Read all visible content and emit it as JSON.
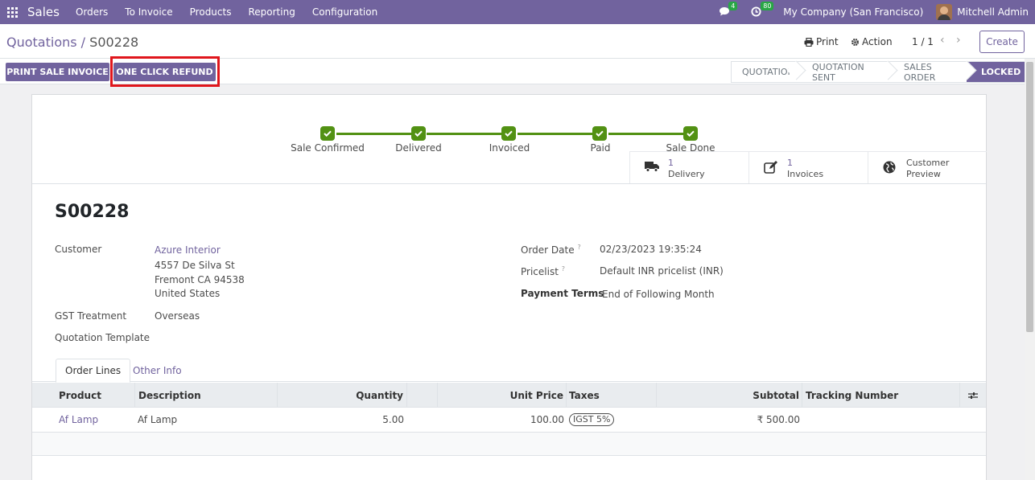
{
  "navbar": {
    "app_name": "Sales",
    "menu": [
      "Orders",
      "To Invoice",
      "Products",
      "Reporting",
      "Configuration"
    ],
    "chat_count": "4",
    "activity_count": "80",
    "company": "My Company (San Francisco)",
    "user": "Mitchell Admin"
  },
  "control": {
    "breadcrumb_parent": "Quotations",
    "breadcrumb_sep": " / ",
    "breadcrumb_current": "S00228",
    "print_label": "Print",
    "action_label": "Action",
    "pager": "1 / 1",
    "create_label": "Create"
  },
  "header_buttons": {
    "print_invoice": "PRINT SALE INVOICE",
    "refund": "ONE CLICK REFUND"
  },
  "stages": [
    "QUOTATION",
    "QUOTATION SENT",
    "SALES ORDER",
    "LOCKED"
  ],
  "active_stage": "LOCKED",
  "progress_steps": [
    "Sale Confirmed",
    "Delivered",
    "Invoiced",
    "Paid",
    "Sale Done"
  ],
  "smart_buttons": {
    "delivery_count": "1",
    "delivery_label": "Delivery",
    "invoices_count": "1",
    "invoices_label": "Invoices",
    "preview_line1": "Customer",
    "preview_line2": "Preview"
  },
  "order": {
    "name": "S00228",
    "customer_label": "Customer",
    "customer_name": "Azure Interior",
    "address_line1": "4557 De Silva St",
    "address_line2": "Fremont CA 94538",
    "address_line3": "United States",
    "gst_label": "GST Treatment",
    "gst_value": "Overseas",
    "template_label": "Quotation Template",
    "order_date_label": "Order Date",
    "order_date": "02/23/2023 19:35:24",
    "pricelist_label": "Pricelist",
    "pricelist": "Default INR pricelist (INR)",
    "payment_terms_label": "Payment Terms",
    "payment_terms": "End of Following Month",
    "help_mark": "?"
  },
  "tabs": {
    "order_lines": "Order Lines",
    "other_info": "Other Info"
  },
  "table": {
    "headers": {
      "product": "Product",
      "description": "Description",
      "quantity": "Quantity",
      "unit_price": "Unit Price",
      "taxes": "Taxes",
      "subtotal": "Subtotal",
      "tracking": "Tracking Number"
    },
    "rows": [
      {
        "product": "Af Lamp",
        "description": "Af Lamp",
        "quantity": "5.00",
        "unit_price": "100.00",
        "taxes": "IGST 5%",
        "subtotal": "₹ 500.00"
      }
    ]
  },
  "colors": {
    "brand": "#71639e",
    "progress_green": "#529113",
    "highlight_red": "#e0161c"
  }
}
